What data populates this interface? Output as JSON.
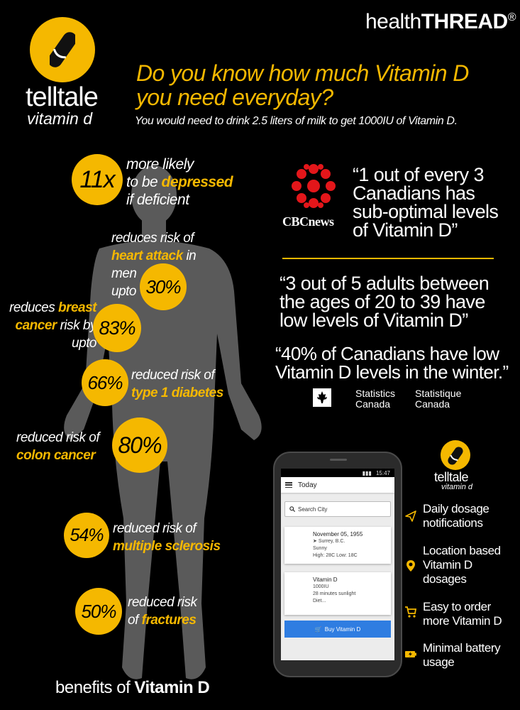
{
  "header": {
    "brand_name": "telltale",
    "brand_sub": "vitamin d",
    "partner_prefix": "health",
    "partner_bold": "THREAD",
    "partner_mark": "®",
    "headline_line1": "Do you know how much Vitamin D",
    "headline_line2": "you need everyday?",
    "subline": "You would need to drink 2.5 liters of milk to get 1000IU of Vitamin D."
  },
  "benefits": [
    {
      "value": "11x",
      "line1": "more likely",
      "line2_pre": "to be ",
      "line2_hl": "depressed",
      "line3": "if deficient"
    },
    {
      "value": "30%",
      "line1": "reduces risk of",
      "line2_hl": "heart attack",
      "line2_post": " in",
      "line3": "men",
      "line4": "upto"
    },
    {
      "value": "83%",
      "line1_pre": "reduces ",
      "line1_hl": "breast",
      "line2_hl": "cancer",
      "line2_post": " risk by",
      "line3": "upto"
    },
    {
      "value": "66%",
      "line1": "reduced risk of",
      "line2_hl": "type 1 diabetes"
    },
    {
      "value": "80%",
      "line1": "reduced risk of",
      "line2_hl": "colon cancer"
    },
    {
      "value": "54%",
      "line1": "reduced risk of",
      "line2_hl": "multiple sclerosis"
    },
    {
      "value": "50%",
      "line1": "reduced risk",
      "line2_pre": "of ",
      "line2_hl": "fractures"
    }
  ],
  "footer": {
    "benefits_pre": "benefits of ",
    "benefits_bold": "Vitamin D"
  },
  "cbc": {
    "label": "CBCnews",
    "quote": [
      "“1 out of every 3",
      "Canadians has",
      "sub-optimal levels",
      " of Vitamin D”"
    ]
  },
  "quote2": [
    "“3 out of 5 adults between",
    "the ages of 20 to 39 have",
    "low levels of  Vitamin D”"
  ],
  "quote3": [
    "“40% of Canadians have low",
    "Vitamin D levels in the winter.”"
  ],
  "statcan": {
    "en_1": "Statistics",
    "en_2": "Canada",
    "fr_1": "Statistique",
    "fr_2": "Canada"
  },
  "phone": {
    "time": "15:47",
    "appbar_title": "Today",
    "search_placeholder": "Search City",
    "card1": {
      "date": "November 05, 1955",
      "location": "Surrey, B.C.",
      "weather": "Sunny",
      "temps": "High: 28C Low: 18C"
    },
    "card2": {
      "title": "Vitamin D",
      "dose": "1000IU",
      "sun": "28 minutes sunlight",
      "diet": "Diet..."
    },
    "buy_button": "Buy Vitamin D"
  },
  "app": {
    "name": "telltale",
    "sub": "vitamin d"
  },
  "features": [
    {
      "icon": "paper-plane-icon",
      "line1": "Daily dosage",
      "line2": "notifications"
    },
    {
      "icon": "location-pin-icon",
      "line1": "Location based",
      "line2": "Vitamin D",
      "line3": "dosages"
    },
    {
      "icon": "cart-icon",
      "line1": "Easy to order",
      "line2": "more Vitamin D"
    },
    {
      "icon": "battery-icon",
      "line1": "Minimal battery",
      "line2": "usage"
    }
  ],
  "colors": {
    "accent": "#f5b800",
    "background": "#000000",
    "silhouette": "#5a5a5a",
    "cbc_red": "#e3161a",
    "button_blue": "#2f7de1"
  }
}
